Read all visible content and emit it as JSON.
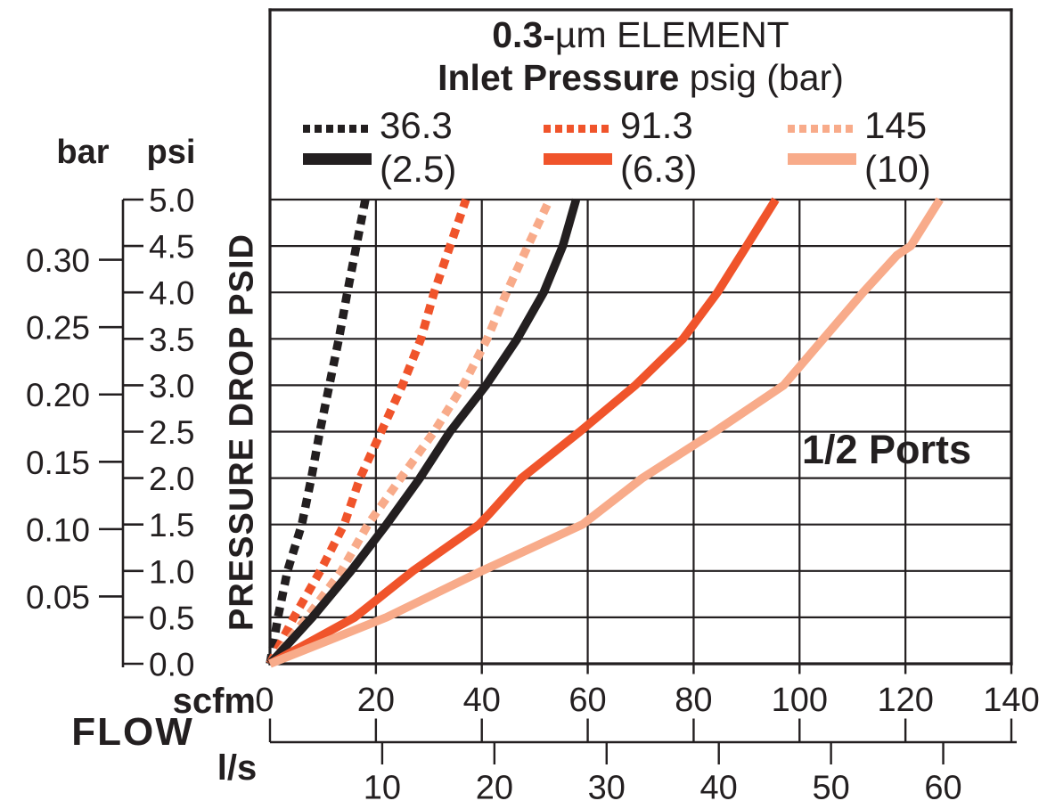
{
  "title": {
    "line1_bold": "0.3-",
    "line1_rest": "µm ELEMENT",
    "line2_bold": "Inlet Pressure",
    "line2_rest": " psig (bar)"
  },
  "legend": {
    "items": [
      {
        "psig_label": "36.3",
        "bar_label": "(2.5)",
        "color": "#231F20"
      },
      {
        "psig_label": "91.3",
        "bar_label": "(6.3)",
        "color": "#F0542B"
      },
      {
        "psig_label": "145",
        "bar_label": "(10)",
        "color": "#F8AB8A"
      }
    ]
  },
  "axes": {
    "y_title": "PRESSURE DROP PSID",
    "y_unit_left": "bar",
    "y_unit_right": "psi",
    "x_label": "FLOW",
    "x_unit_top": "scfm",
    "x_unit_bottom": "l/s"
  },
  "annotations": {
    "ports": "1/2 Ports"
  },
  "colors": {
    "black": "#231F20",
    "orange": "#F0542B",
    "salmon": "#F8AB8A",
    "grid": "#231F20",
    "background": "#FFFFFF"
  },
  "chart_data": {
    "type": "line",
    "title": "0.3-µm ELEMENT",
    "subtitle": "Inlet Pressure psig (bar)",
    "xlabel": "FLOW",
    "x_units": [
      "scfm",
      "l/s"
    ],
    "ylabel": "PRESSURE DROP PSID",
    "y_units": [
      "psi",
      "bar"
    ],
    "xlim_scfm": [
      0,
      140
    ],
    "ylim_psid": [
      0,
      5
    ],
    "scfm_ticks": [
      0,
      20,
      40,
      60,
      80,
      100,
      120,
      140
    ],
    "ls_ticks": [
      10,
      20,
      30,
      40,
      50,
      60
    ],
    "psi_tick_step": 0.5,
    "bar_tick_step": 0.05,
    "bar_tick_count": 6,
    "scfm_per_ls": 2.1189,
    "grid": true,
    "legend_position": "top-inside",
    "annotation": "1/2 Ports",
    "series": [
      {
        "id": "psig-36-3-dashed",
        "name": "36.3 psig (2.5 bar) dashed",
        "inlet_psig": 36.3,
        "inlet_bar": 2.5,
        "line_style": "dashed",
        "color": "#231F20",
        "points_scfm_psid": [
          [
            0,
            0
          ],
          [
            1.5,
            0.5
          ],
          [
            3.3,
            1.0
          ],
          [
            6,
            1.5
          ],
          [
            7.8,
            2.0
          ],
          [
            9.4,
            2.5
          ],
          [
            11.2,
            3.0
          ],
          [
            13,
            3.5
          ],
          [
            14.6,
            4.0
          ],
          [
            16.3,
            4.5
          ],
          [
            18,
            5.0
          ]
        ]
      },
      {
        "id": "psig-91-3-dashed",
        "name": "91.3 psig (6.3 bar) dashed",
        "inlet_psig": 91.3,
        "inlet_bar": 6.3,
        "line_style": "dashed",
        "color": "#F0542B",
        "points_scfm_psid": [
          [
            0,
            0
          ],
          [
            4.5,
            0.5
          ],
          [
            9.5,
            1.0
          ],
          [
            14,
            1.5
          ],
          [
            17,
            2.0
          ],
          [
            21,
            2.5
          ],
          [
            25,
            3.0
          ],
          [
            28.5,
            3.5
          ],
          [
            31,
            4.0
          ],
          [
            34,
            4.5
          ],
          [
            37,
            5.0
          ]
        ]
      },
      {
        "id": "psig-145-dashed",
        "name": "145 psig (10 bar) dashed",
        "inlet_psig": 145,
        "inlet_bar": 10,
        "line_style": "dashed",
        "color": "#F8AB8A",
        "points_scfm_psid": [
          [
            0,
            0
          ],
          [
            7,
            0.5
          ],
          [
            13.5,
            1.0
          ],
          [
            18.5,
            1.5
          ],
          [
            24.7,
            2.0
          ],
          [
            31,
            2.5
          ],
          [
            36.5,
            3.0
          ],
          [
            41,
            3.5
          ],
          [
            44.7,
            4.0
          ],
          [
            48.7,
            4.5
          ],
          [
            52.8,
            5.0
          ]
        ]
      },
      {
        "id": "psig-36-3-solid",
        "name": "36.3 psig (2.5 bar) solid",
        "inlet_psig": 36.3,
        "inlet_bar": 2.5,
        "line_style": "solid",
        "color": "#231F20",
        "points_scfm_psid": [
          [
            0,
            0
          ],
          [
            8,
            0.5
          ],
          [
            15.3,
            1.0
          ],
          [
            22,
            1.5
          ],
          [
            28.3,
            2.0
          ],
          [
            34,
            2.5
          ],
          [
            40.8,
            3.0
          ],
          [
            46.7,
            3.5
          ],
          [
            51.7,
            4.0
          ],
          [
            55.3,
            4.5
          ],
          [
            57.8,
            5.0
          ]
        ]
      },
      {
        "id": "psig-91-3-solid",
        "name": "91.3 psig (6.3 bar) solid",
        "inlet_psig": 91.3,
        "inlet_bar": 6.3,
        "line_style": "solid",
        "color": "#F0542B",
        "points_scfm_psid": [
          [
            0,
            0
          ],
          [
            16,
            0.5
          ],
          [
            27,
            1.0
          ],
          [
            39.5,
            1.5
          ],
          [
            41.5,
            1.62
          ],
          [
            47.5,
            2.0
          ],
          [
            58.5,
            2.5
          ],
          [
            69,
            3.0
          ],
          [
            78,
            3.5
          ],
          [
            84.5,
            4.0
          ],
          [
            90,
            4.5
          ],
          [
            95.5,
            5.0
          ]
        ]
      },
      {
        "id": "psig-145-solid",
        "name": "145 psig (10 bar) solid",
        "inlet_psig": 145,
        "inlet_bar": 10,
        "line_style": "solid",
        "color": "#F8AB8A",
        "points_scfm_psid": [
          [
            0,
            0
          ],
          [
            22,
            0.5
          ],
          [
            40,
            1.0
          ],
          [
            59,
            1.5
          ],
          [
            70.3,
            2.0
          ],
          [
            84,
            2.5
          ],
          [
            97,
            3.0
          ],
          [
            104.5,
            3.5
          ],
          [
            112,
            4.0
          ],
          [
            118.4,
            4.4
          ],
          [
            121,
            4.5
          ],
          [
            126.5,
            5.0
          ]
        ]
      }
    ]
  }
}
